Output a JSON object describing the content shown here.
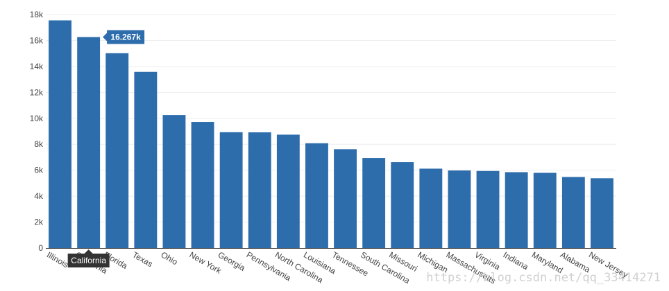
{
  "chart_data": {
    "type": "bar",
    "categories": [
      "Illinois",
      "California",
      "Florida",
      "Texas",
      "Ohio",
      "New York",
      "Georgia",
      "Pennsylvania",
      "North Carolina",
      "Louisiana",
      "Tennessee",
      "South Carolina",
      "Missouri",
      "Michigan",
      "Massachusetts",
      "Virginia",
      "Indiana",
      "Maryland",
      "Alabama",
      "New Jersey"
    ],
    "values": [
      17550,
      16267,
      15020,
      13580,
      10250,
      9720,
      8930,
      8920,
      8740,
      8080,
      7620,
      6940,
      6620,
      6120,
      5980,
      5940,
      5850,
      5800,
      5480,
      5380
    ],
    "yticks": [
      0,
      2000,
      4000,
      6000,
      8000,
      10000,
      12000,
      14000,
      16000,
      18000
    ],
    "ytick_labels": [
      "0",
      "2k",
      "4k",
      "6k",
      "8k",
      "10k",
      "12k",
      "14k",
      "16k",
      "18k"
    ],
    "ylim": [
      0,
      18000
    ],
    "bar_color": "#2e6dac",
    "grid": true,
    "hover": {
      "category_index": 1,
      "category_label": "California",
      "value_label": "16.267k"
    }
  },
  "watermark": "https://blog.csdn.net/qq_33414271"
}
